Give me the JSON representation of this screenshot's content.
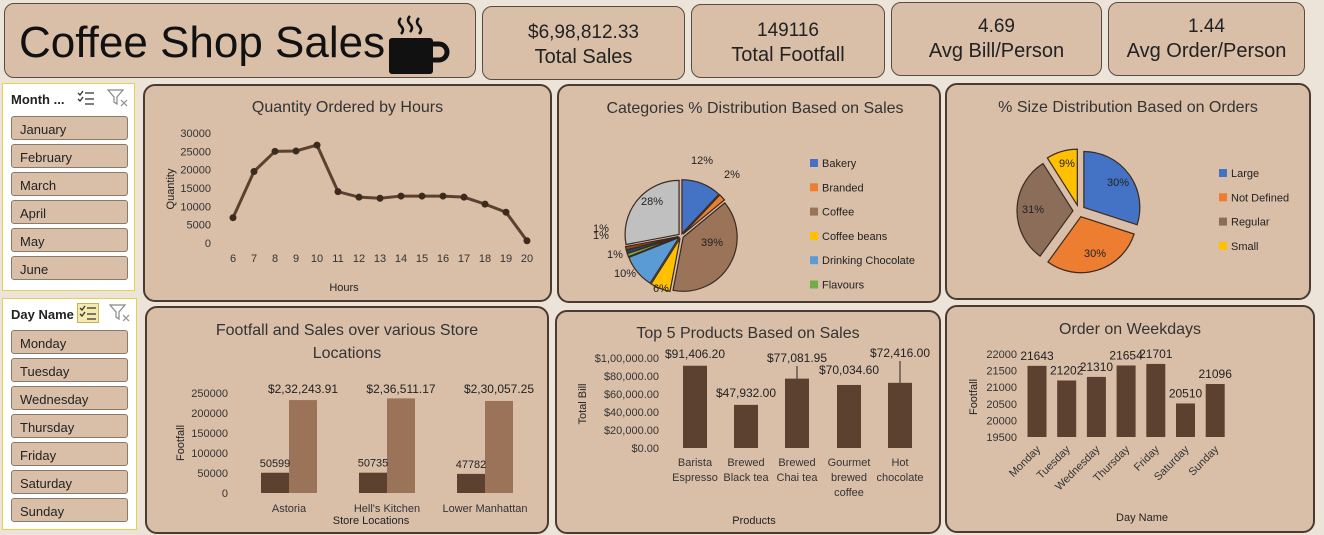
{
  "header": {
    "title": "Coffee Shop Sales",
    "icon": "coffee-cup-icon"
  },
  "kpis": [
    {
      "value": "$6,98,812.33",
      "label": "Total Sales"
    },
    {
      "value": "149116",
      "label": "Total Footfall"
    },
    {
      "value": "4.69",
      "label": "Avg Bill/Person"
    },
    {
      "value": "1.44",
      "label": "Avg Order/Person"
    }
  ],
  "month_slicer": {
    "header": "Month ...",
    "items": [
      "January",
      "February",
      "March",
      "April",
      "May",
      "June"
    ]
  },
  "day_slicer": {
    "header": "Day Name",
    "items": [
      "Monday",
      "Tuesday",
      "Wednesday",
      "Thursday",
      "Friday",
      "Saturday",
      "Sunday"
    ]
  },
  "colors": {
    "panel": "#d9bfa8",
    "dark_brown": "#5c4030",
    "light_brown": "#9a7358"
  },
  "chart_data": [
    {
      "type": "line",
      "title": "Quantity Ordered by Hours",
      "xlabel": "Hours",
      "ylabel": "Quantity",
      "x": [
        6,
        7,
        8,
        9,
        10,
        11,
        12,
        13,
        14,
        15,
        16,
        17,
        18,
        19,
        20
      ],
      "values": [
        6900,
        19500,
        25000,
        25100,
        26700,
        14000,
        12500,
        12200,
        12800,
        12800,
        12800,
        12500,
        10600,
        8400,
        600
      ],
      "ylim": [
        0,
        30000
      ],
      "yticks": [
        "0",
        "5000",
        "10000",
        "15000",
        "20000",
        "25000",
        "30000"
      ]
    },
    {
      "type": "pie",
      "title": "Categories % Distribution Based on Sales",
      "legend_position": "right",
      "slices": [
        {
          "name": "Bakery",
          "value": 12,
          "label": "12%",
          "color": "#4472c4"
        },
        {
          "name": "Branded",
          "value": 2,
          "label": "2%",
          "color": "#ed7d31"
        },
        {
          "name": "Coffee",
          "value": 39,
          "label": "39%",
          "color": "#9a7358"
        },
        {
          "name": "Coffee beans",
          "value": 6,
          "label": "6%",
          "color": "#ffc000"
        },
        {
          "name": "Drinking Chocolate",
          "value": 10,
          "label": "10%",
          "color": "#5b9bd5"
        },
        {
          "name": "Flavours",
          "value": 1,
          "label": "1%",
          "color": "#70ad47"
        },
        {
          "name": "",
          "value": 1,
          "label": "1%",
          "color": "#264478"
        },
        {
          "name": "",
          "value": 1,
          "label": "1%",
          "color": "#9e480e"
        },
        {
          "name": "",
          "value": 28,
          "label": "28%",
          "color": "#c0c0c0"
        }
      ]
    },
    {
      "type": "pie",
      "title": "% Size Distribution Based on Orders",
      "legend_position": "right",
      "slices": [
        {
          "name": "Large",
          "value": 30,
          "label": "30%",
          "color": "#4472c4"
        },
        {
          "name": "Not Defined",
          "value": 30,
          "label": "30%",
          "color": "#ed7d31"
        },
        {
          "name": "Regular",
          "value": 31,
          "label": "31%",
          "color": "#8b6d5a"
        },
        {
          "name": "Small",
          "value": 9,
          "label": "9%",
          "color": "#ffc000"
        }
      ]
    },
    {
      "type": "bar",
      "title": "Footfall and Sales over various Store Locations",
      "xlabel": "Store Locations",
      "ylabel": "Footfall",
      "categories": [
        "Astoria",
        "Hell's Kitchen",
        "Lower Manhattan"
      ],
      "series": [
        {
          "name": "Footfall",
          "values": [
            50599,
            50735,
            47782
          ],
          "labels": [
            "50599",
            "50735",
            "47782"
          ]
        },
        {
          "name": "Sales",
          "values": [
            232243.91,
            236511.17,
            230057.25
          ],
          "labels": [
            "$2,32,243.91",
            "$2,36,511.17",
            "$2,30,057.25"
          ]
        }
      ],
      "ylim": [
        0,
        250000
      ],
      "yticks": [
        "0",
        "50000",
        "100000",
        "150000",
        "200000",
        "250000"
      ]
    },
    {
      "type": "bar",
      "title": "Top 5 Products Based on Sales",
      "xlabel": "Products",
      "ylabel": "Total Bill",
      "categories": [
        [
          "Barista",
          "Espresso"
        ],
        [
          "Brewed",
          "Black tea"
        ],
        [
          "Brewed",
          "Chai tea"
        ],
        [
          "Gourmet",
          "brewed",
          "coffee"
        ],
        [
          "Hot",
          "chocolate"
        ]
      ],
      "values": [
        91406.2,
        47932.0,
        77081.95,
        70034.6,
        72416.0
      ],
      "labels": [
        "$91,406.20",
        "$47,932.00",
        "$77,081.95",
        "$70,034.60",
        "$72,416.00"
      ],
      "ylim": [
        0,
        100000
      ],
      "yticks": [
        "$0.00",
        "$20,000.00",
        "$40,000.00",
        "$60,000.00",
        "$80,000.00",
        "$1,00,000.00"
      ]
    },
    {
      "type": "bar",
      "title": "Order on Weekdays",
      "xlabel": "Day Name",
      "ylabel": "Footfall",
      "categories": [
        "Monday",
        "Tuesday",
        "Wednesday",
        "Thursday",
        "Friday",
        "Saturday",
        "Sunday"
      ],
      "values": [
        21643,
        21202,
        21310,
        21654,
        21701,
        20510,
        21096
      ],
      "labels": [
        "21643",
        "21202",
        "21310",
        "21654",
        "21701",
        "20510",
        "21096"
      ],
      "ylim": [
        19500,
        22000
      ],
      "yticks": [
        "19500",
        "20000",
        "20500",
        "21000",
        "21500",
        "22000"
      ]
    }
  ]
}
